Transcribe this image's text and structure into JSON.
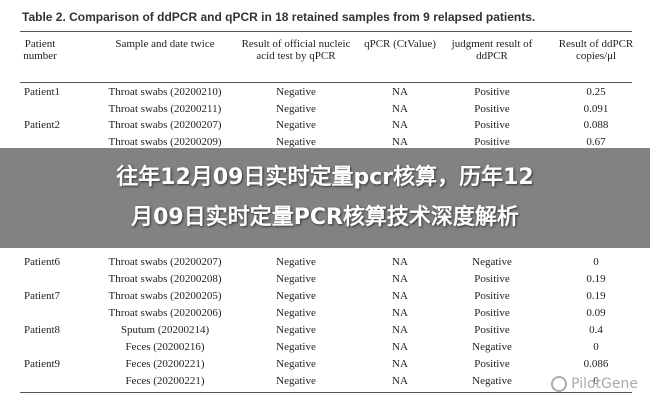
{
  "header": {
    "title": "Table 2. Comparison of ddPCR and qPCR in 18 retained samples from 9 relapsed patients."
  },
  "table": {
    "columns": [
      "Patient number",
      "Sample and date twice",
      "Result of official nucleic acid test by qPCR",
      "qPCR (CtValue)",
      "judgment result of ddPCR",
      "Result of ddPCR copies/μl"
    ],
    "rows": [
      {
        "patient": "Patient1",
        "cells": [
          "Throat swabs (20200210)",
          "Negative",
          "NA",
          "Positive",
          "0.25"
        ]
      },
      {
        "cells": [
          "Throat swabs (20200211)",
          "Negative",
          "NA",
          "Positive",
          "0.091"
        ]
      },
      {
        "patient": "Patient2",
        "cells": [
          "Throat swabs (20200207)",
          "Negative",
          "NA",
          "Positive",
          "0.088"
        ]
      },
      {
        "cells": [
          "Throat swabs (20200209)",
          "Negative",
          "NA",
          "Positive",
          "0.67"
        ]
      },
      {
        "patient": "Patient6",
        "cells": [
          "Throat swabs (20200207)",
          "Negative",
          "NA",
          "Negative",
          "0"
        ]
      },
      {
        "cells": [
          "Throat swabs (20200208)",
          "Negative",
          "NA",
          "Positive",
          "0.19"
        ]
      },
      {
        "patient": "Patient7",
        "cells": [
          "Throat swabs (20200205)",
          "Negative",
          "NA",
          "Positive",
          "0.19"
        ]
      },
      {
        "cells": [
          "Throat swabs (20200206)",
          "Negative",
          "NA",
          "Positive",
          "0.09"
        ]
      },
      {
        "patient": "Patient8",
        "cells": [
          "Sputum (20200214)",
          "Negative",
          "NA",
          "Positive",
          "0.4"
        ]
      },
      {
        "cells": [
          "Feces (20200216)",
          "Negative",
          "NA",
          "Negative",
          "0"
        ]
      },
      {
        "patient": "Patient9",
        "cells": [
          "Feces (20200221)",
          "Negative",
          "NA",
          "Positive",
          "0.086"
        ]
      },
      {
        "cells": [
          "Feces (20200221)",
          "Negative",
          "NA",
          "Negative",
          "0"
        ]
      }
    ]
  },
  "banner": {
    "lines": [
      "往年12月09日实时定量pcr核算，历年12",
      "月09日实时定量PCR核算技术深度解析"
    ]
  },
  "watermark": "PilotGene"
}
